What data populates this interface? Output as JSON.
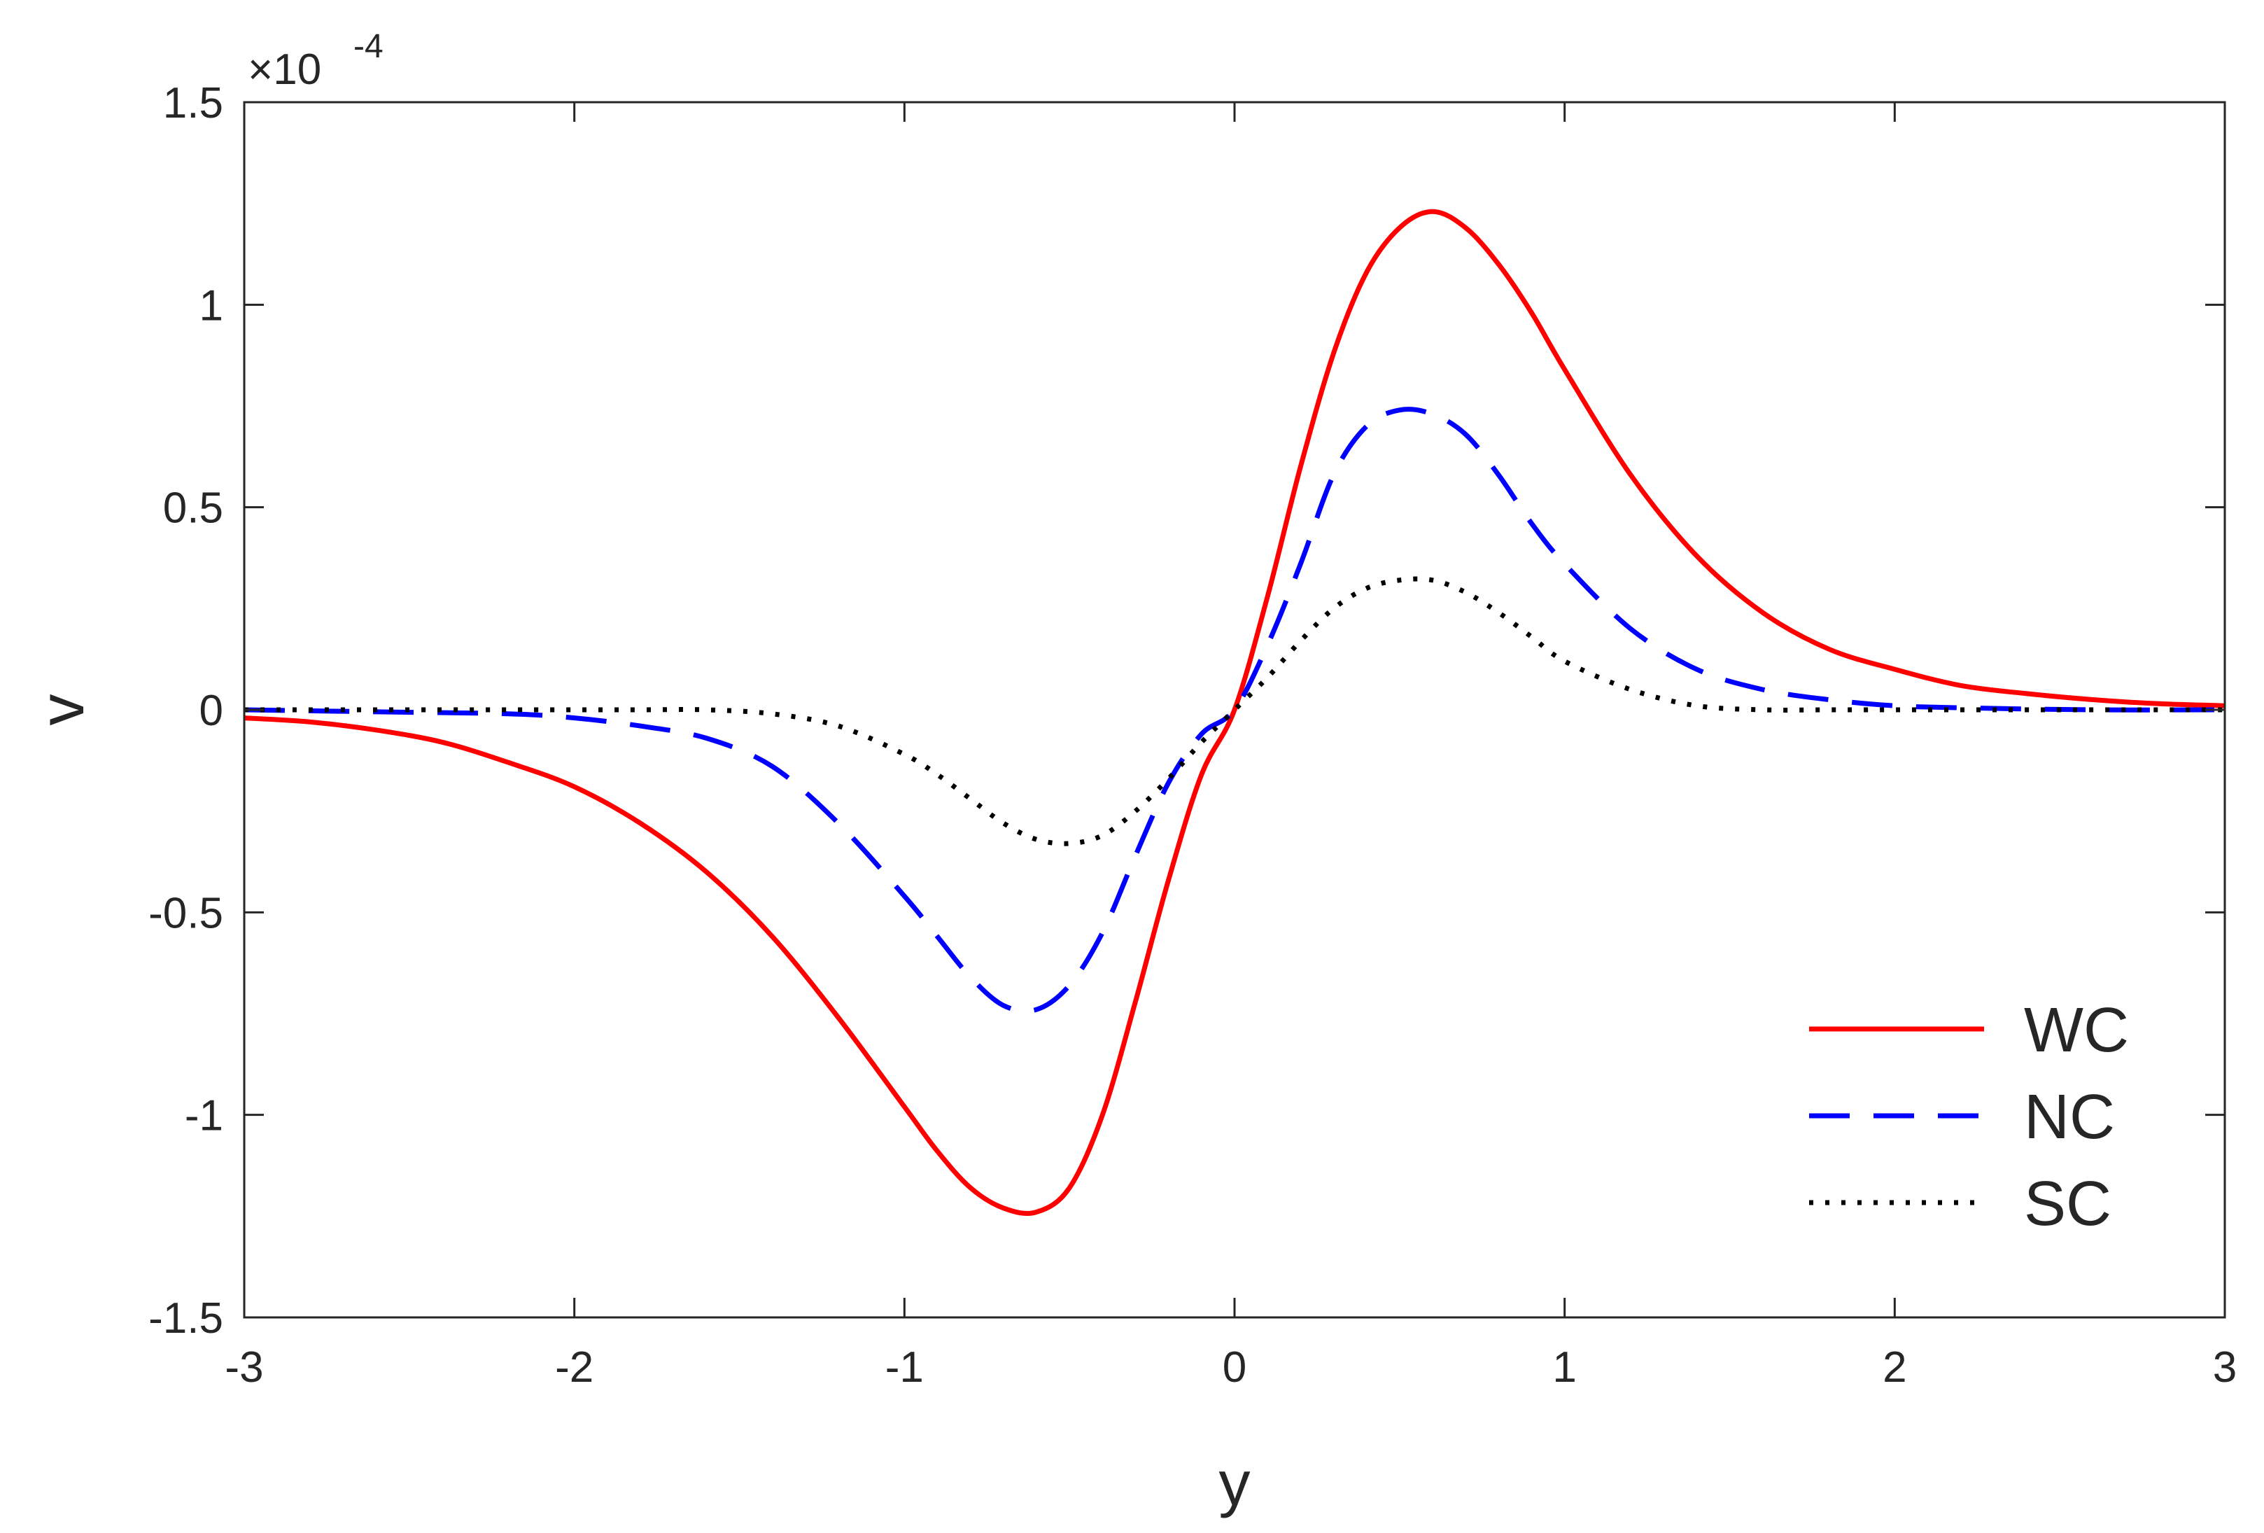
{
  "chart_data": {
    "type": "line",
    "xlabel": "y",
    "ylabel": "v",
    "y_multiplier_label": "×10",
    "y_multiplier_exponent": "-4",
    "xlim": [
      -3,
      3
    ],
    "ylim": [
      -1.5,
      1.5
    ],
    "y_scale_factor": 0.0001,
    "x_ticks": [
      "-3",
      "-2",
      "-1",
      "0",
      "1",
      "2",
      "3"
    ],
    "y_ticks": [
      "-1.5",
      "-1",
      "-0.5",
      "0",
      "0.5",
      "1",
      "1.5"
    ],
    "grid": false,
    "legend_position": "bottom-right",
    "series": [
      {
        "name": "WC",
        "color": "#ff0000",
        "style": "solid",
        "x": [
          -3.0,
          -2.8,
          -2.6,
          -2.4,
          -2.2,
          -2.0,
          -1.8,
          -1.6,
          -1.4,
          -1.2,
          -1.0,
          -0.9,
          -0.8,
          -0.7,
          -0.6,
          -0.5,
          -0.4,
          -0.3,
          -0.2,
          -0.1,
          0.0,
          0.1,
          0.2,
          0.3,
          0.4,
          0.5,
          0.6,
          0.7,
          0.8,
          0.9,
          1.0,
          1.2,
          1.4,
          1.6,
          1.8,
          2.0,
          2.2,
          2.4,
          2.6,
          2.8,
          3.0
        ],
        "y": [
          -0.02,
          -0.03,
          -0.05,
          -0.08,
          -0.13,
          -0.19,
          -0.28,
          -0.4,
          -0.56,
          -0.76,
          -0.98,
          -1.09,
          -1.18,
          -1.23,
          -1.24,
          -1.18,
          -1.0,
          -0.72,
          -0.42,
          -0.16,
          0.0,
          0.28,
          0.6,
          0.88,
          1.08,
          1.19,
          1.23,
          1.19,
          1.1,
          0.98,
          0.84,
          0.58,
          0.38,
          0.24,
          0.15,
          0.1,
          0.06,
          0.04,
          0.025,
          0.015,
          0.01
        ]
      },
      {
        "name": "NC",
        "color": "#0000ff",
        "style": "dashed",
        "x": [
          -3.0,
          -2.6,
          -2.2,
          -2.0,
          -1.8,
          -1.6,
          -1.4,
          -1.2,
          -1.0,
          -0.9,
          -0.8,
          -0.7,
          -0.6,
          -0.5,
          -0.4,
          -0.3,
          -0.2,
          -0.1,
          0.0,
          0.1,
          0.2,
          0.3,
          0.4,
          0.5,
          0.6,
          0.7,
          0.8,
          0.9,
          1.0,
          1.2,
          1.4,
          1.6,
          1.8,
          2.0,
          2.2,
          2.6,
          3.0
        ],
        "y": [
          0.0,
          -0.005,
          -0.01,
          -0.02,
          -0.04,
          -0.07,
          -0.14,
          -0.28,
          -0.46,
          -0.56,
          -0.66,
          -0.73,
          -0.74,
          -0.68,
          -0.55,
          -0.36,
          -0.18,
          -0.06,
          0.0,
          0.16,
          0.36,
          0.58,
          0.7,
          0.74,
          0.73,
          0.68,
          0.58,
          0.46,
          0.36,
          0.2,
          0.1,
          0.05,
          0.025,
          0.01,
          0.005,
          0.0,
          0.0
        ]
      },
      {
        "name": "SC",
        "color": "#000000",
        "style": "dotted",
        "x": [
          -3.0,
          -2.4,
          -2.0,
          -1.8,
          -1.6,
          -1.4,
          -1.2,
          -1.0,
          -0.9,
          -0.8,
          -0.7,
          -0.6,
          -0.5,
          -0.4,
          -0.3,
          -0.2,
          -0.1,
          0.0,
          0.1,
          0.2,
          0.3,
          0.4,
          0.5,
          0.6,
          0.7,
          0.8,
          0.9,
          1.0,
          1.2,
          1.4,
          1.6,
          1.8,
          2.0,
          2.4,
          3.0
        ],
        "y": [
          0.0,
          0.0,
          0.0,
          0.0,
          0.0,
          -0.01,
          -0.04,
          -0.11,
          -0.16,
          -0.22,
          -0.28,
          -0.32,
          -0.33,
          -0.31,
          -0.25,
          -0.17,
          -0.08,
          0.0,
          0.08,
          0.17,
          0.25,
          0.3,
          0.32,
          0.32,
          0.29,
          0.24,
          0.18,
          0.12,
          0.05,
          0.01,
          0.0,
          0.0,
          0.0,
          0.0,
          0.0
        ]
      }
    ]
  }
}
